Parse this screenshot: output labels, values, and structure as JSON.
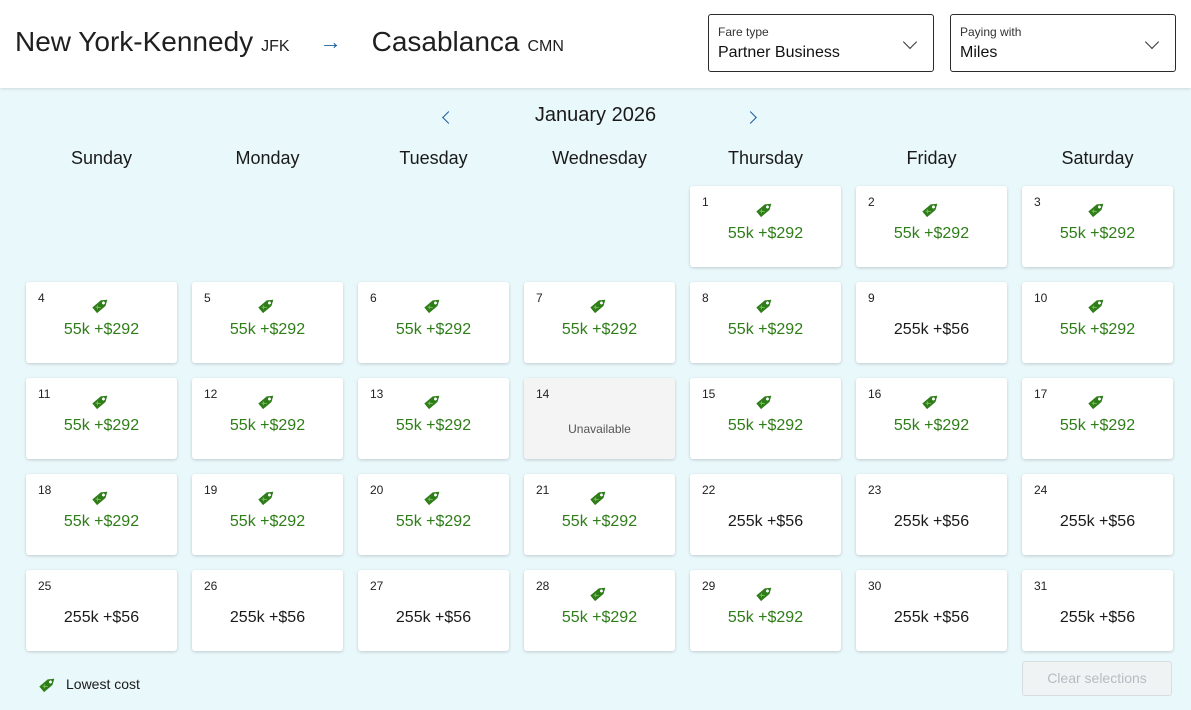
{
  "route": {
    "origin_city": "New York-Kennedy",
    "origin_code": "JFK",
    "destination_city": "Casablanca",
    "destination_code": "CMN"
  },
  "fare_type": {
    "label": "Fare type",
    "value": "Partner Business"
  },
  "paying_with": {
    "label": "Paying with",
    "value": "Miles"
  },
  "calendar": {
    "month": "January 2026",
    "weekdays": [
      "Sunday",
      "Monday",
      "Tuesday",
      "Wednesday",
      "Thursday",
      "Friday",
      "Saturday"
    ],
    "first_weekday_index": 4,
    "unavailable_text": "Unavailable",
    "days": [
      {
        "day": "1",
        "price": "55k +$292",
        "lowest": true
      },
      {
        "day": "2",
        "price": "55k +$292",
        "lowest": true
      },
      {
        "day": "3",
        "price": "55k +$292",
        "lowest": true
      },
      {
        "day": "4",
        "price": "55k +$292",
        "lowest": true
      },
      {
        "day": "5",
        "price": "55k +$292",
        "lowest": true
      },
      {
        "day": "6",
        "price": "55k +$292",
        "lowest": true
      },
      {
        "day": "7",
        "price": "55k +$292",
        "lowest": true
      },
      {
        "day": "8",
        "price": "55k +$292",
        "lowest": true
      },
      {
        "day": "9",
        "price": "255k +$56",
        "lowest": false
      },
      {
        "day": "10",
        "price": "55k +$292",
        "lowest": true
      },
      {
        "day": "11",
        "price": "55k +$292",
        "lowest": true
      },
      {
        "day": "12",
        "price": "55k +$292",
        "lowest": true
      },
      {
        "day": "13",
        "price": "55k +$292",
        "lowest": true
      },
      {
        "day": "14",
        "price": null,
        "lowest": false,
        "unavailable": true
      },
      {
        "day": "15",
        "price": "55k +$292",
        "lowest": true
      },
      {
        "day": "16",
        "price": "55k +$292",
        "lowest": true
      },
      {
        "day": "17",
        "price": "55k +$292",
        "lowest": true
      },
      {
        "day": "18",
        "price": "55k +$292",
        "lowest": true
      },
      {
        "day": "19",
        "price": "55k +$292",
        "lowest": true
      },
      {
        "day": "20",
        "price": "55k +$292",
        "lowest": true
      },
      {
        "day": "21",
        "price": "55k +$292",
        "lowest": true
      },
      {
        "day": "22",
        "price": "255k +$56",
        "lowest": false
      },
      {
        "day": "23",
        "price": "255k +$56",
        "lowest": false
      },
      {
        "day": "24",
        "price": "255k +$56",
        "lowest": false
      },
      {
        "day": "25",
        "price": "255k +$56",
        "lowest": false
      },
      {
        "day": "26",
        "price": "255k +$56",
        "lowest": false
      },
      {
        "day": "27",
        "price": "255k +$56",
        "lowest": false
      },
      {
        "day": "28",
        "price": "55k +$292",
        "lowest": true
      },
      {
        "day": "29",
        "price": "55k +$292",
        "lowest": true
      },
      {
        "day": "30",
        "price": "255k +$56",
        "lowest": false
      },
      {
        "day": "31",
        "price": "255k +$56",
        "lowest": false
      }
    ]
  },
  "legend": {
    "label": "Lowest cost",
    "icon": "price-tag-icon"
  },
  "clear_button": {
    "label": "Clear selections"
  },
  "colors": {
    "lowest_price": "#2e7d18",
    "accent": "#1a5f9e",
    "background": "#e9f8fb"
  }
}
